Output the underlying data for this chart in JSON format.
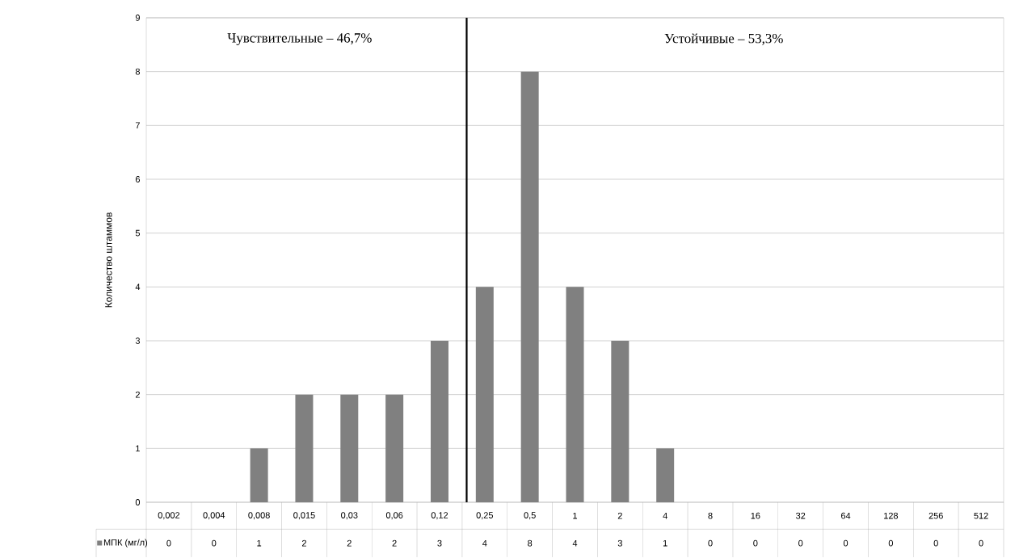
{
  "chart_data": {
    "type": "bar",
    "ylabel": "Количество штаммов",
    "categories": [
      "0,002",
      "0,004",
      "0,008",
      "0,015",
      "0,03",
      "0,06",
      "0,12",
      "0,25",
      "0,5",
      "1",
      "2",
      "4",
      "8",
      "16",
      "32",
      "64",
      "128",
      "256",
      "512"
    ],
    "series": [
      {
        "name": "МПК (мг/л)",
        "color": "#808080",
        "values": [
          0,
          0,
          1,
          2,
          2,
          2,
          3,
          4,
          8,
          4,
          3,
          1,
          0,
          0,
          0,
          0,
          0,
          0,
          0
        ]
      }
    ],
    "ylim": [
      0,
      9
    ],
    "yticks": [
      0,
      1,
      2,
      3,
      4,
      5,
      6,
      7,
      8,
      9
    ],
    "grid": "y",
    "data_labels": true,
    "ref_lines": [
      {
        "axis": "x",
        "value": "0,25",
        "color": "#000000"
      }
    ],
    "annotations": [
      "Чувствительные – 46,7%",
      "Устойчивые – 53,3%"
    ]
  }
}
